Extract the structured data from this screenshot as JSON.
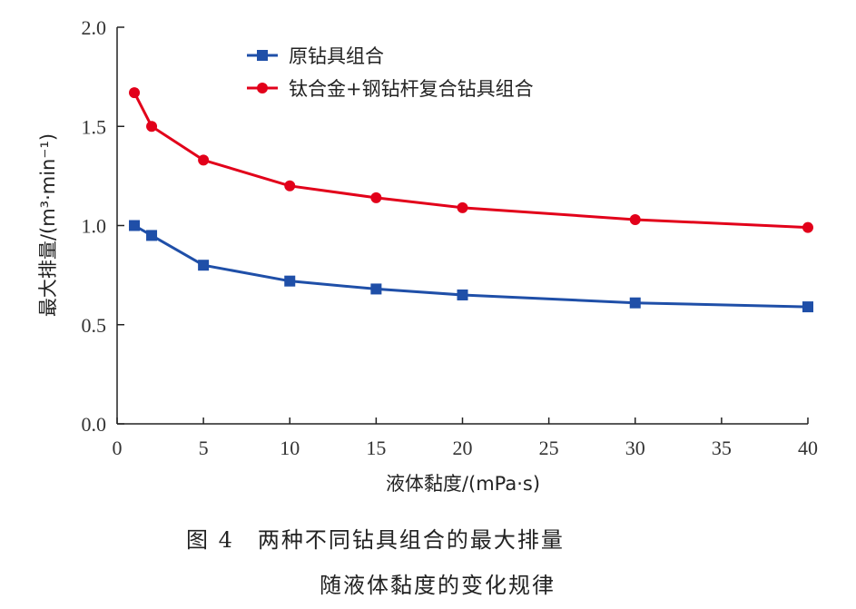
{
  "chart_data": {
    "type": "line",
    "title": "",
    "xlabel": "液体黏度/(mPa·s)",
    "ylabel": "最大排量/(m³·min⁻¹)",
    "xlim": [
      0,
      40
    ],
    "ylim": [
      0,
      2.0
    ],
    "xticks": [
      "0",
      "5",
      "10",
      "15",
      "20",
      "25",
      "30",
      "35",
      "40"
    ],
    "yticks": [
      "0.0",
      "0.5",
      "1.0",
      "1.5",
      "2.0"
    ],
    "grid": false,
    "legend": "top-center",
    "x": [
      1,
      2,
      5,
      10,
      15,
      20,
      30,
      40
    ],
    "series": [
      {
        "name": "原钻具组合",
        "color": "#1f4fa8",
        "marker": "square",
        "values": [
          1.0,
          0.95,
          0.8,
          0.72,
          0.68,
          0.65,
          0.61,
          0.59
        ]
      },
      {
        "name": "钛合金+钢钻杆复合钻具组合",
        "color": "#e2001a",
        "marker": "circle",
        "values": [
          1.67,
          1.5,
          1.33,
          1.2,
          1.14,
          1.09,
          1.03,
          0.99
        ]
      }
    ]
  },
  "caption": {
    "line1": "图 4　两种不同钻具组合的最大排量",
    "line2": "随液体黏度的变化规律"
  }
}
